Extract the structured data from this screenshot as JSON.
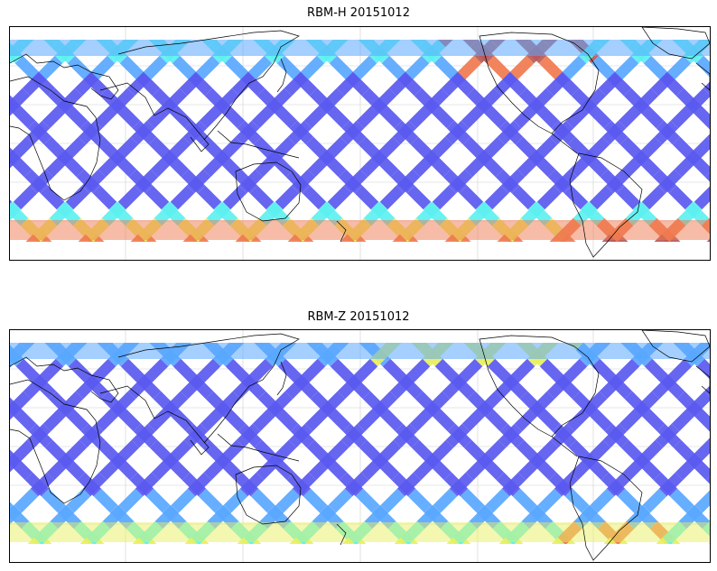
{
  "panels": [
    {
      "id": "rbm-h",
      "title": "RBM-H 20151012",
      "colors": {
        "low": "#5a5af0",
        "mid_low": "#5aa8ff",
        "mid": "#5ef0f0",
        "mid_high": "#e8f060",
        "high": "#f07a50",
        "max": "#b85a5a"
      }
    },
    {
      "id": "rbm-z",
      "title": "RBM-Z 20151012",
      "colors": {
        "low": "#5a5af0",
        "mid_low": "#5aa8ff",
        "mid": "#5ef0f0",
        "mid_high": "#e8f060",
        "high": "#f07a50",
        "max": "#d05a5a"
      }
    }
  ],
  "map": {
    "projection": "PlateCarree",
    "central_longitude": 30,
    "extent_lat": [
      -70,
      80
    ],
    "grid_lines": true,
    "coastlines": true
  }
}
